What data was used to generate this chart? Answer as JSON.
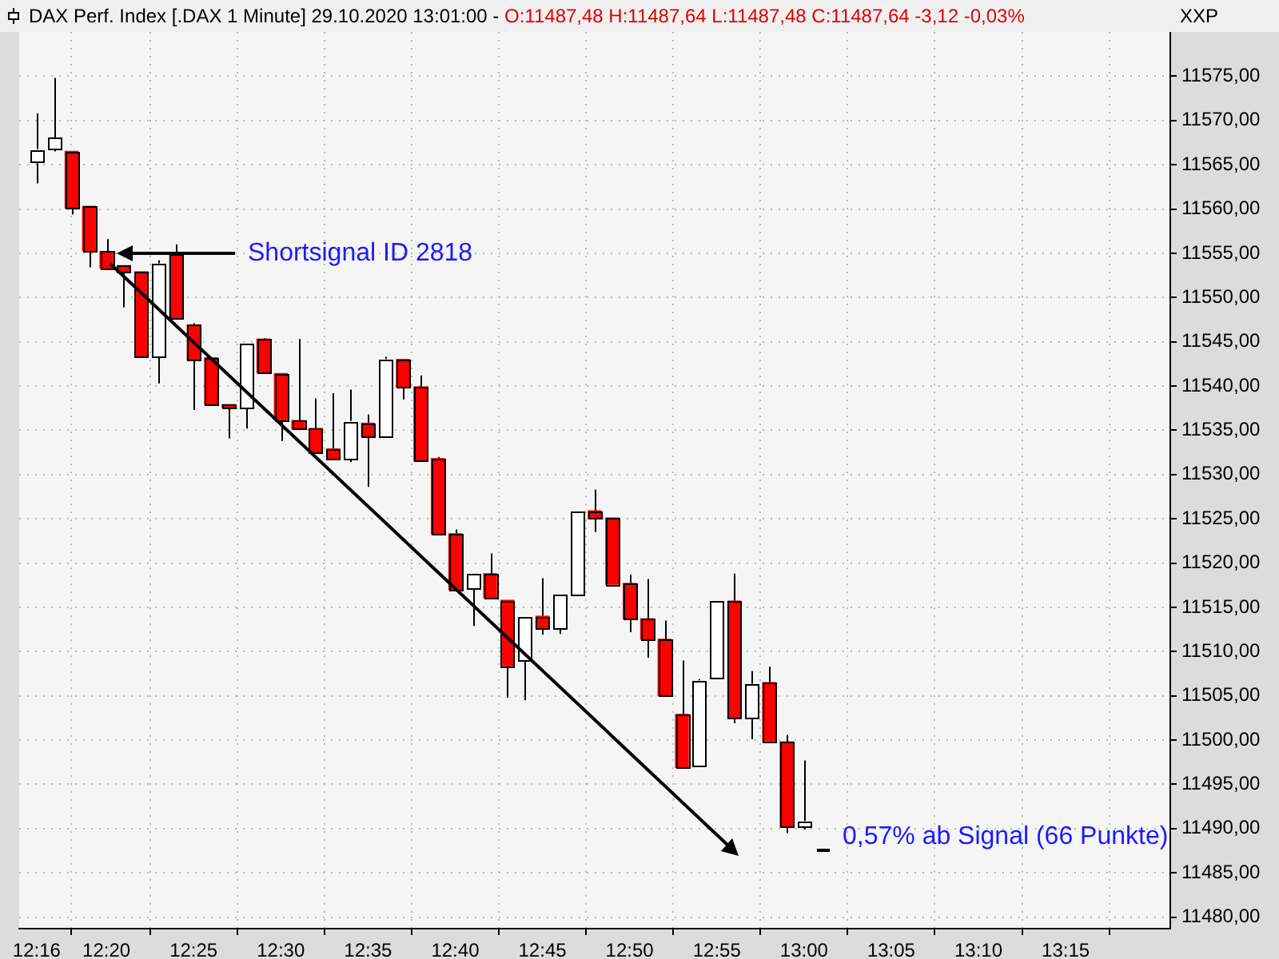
{
  "chart_data": {
    "type": "candlestick",
    "title": "DAX Perf. Index [.DAX  1 Minute] 29.10.2020 13:01:00 -",
    "subtitle": "O:11487,48 H:11487,64 L:11487,48 C:11487,64 -3,12 -0,03%",
    "ylabel": "XXP",
    "x": [
      "2020-10-29T12:16",
      "2020-10-29T12:17",
      "2020-10-29T12:18",
      "2020-10-29T12:19",
      "2020-10-29T12:20",
      "2020-10-29T12:21",
      "2020-10-29T12:22",
      "2020-10-29T12:23",
      "2020-10-29T12:24",
      "2020-10-29T12:25",
      "2020-10-29T12:26",
      "2020-10-29T12:27",
      "2020-10-29T12:28",
      "2020-10-29T12:29",
      "2020-10-29T12:30",
      "2020-10-29T12:31",
      "2020-10-29T12:32",
      "2020-10-29T12:33",
      "2020-10-29T12:34",
      "2020-10-29T12:35",
      "2020-10-29T12:36",
      "2020-10-29T12:37",
      "2020-10-29T12:38",
      "2020-10-29T12:39",
      "2020-10-29T12:40",
      "2020-10-29T12:41",
      "2020-10-29T12:42",
      "2020-10-29T12:43",
      "2020-10-29T12:44",
      "2020-10-29T12:45",
      "2020-10-29T12:46",
      "2020-10-29T12:47",
      "2020-10-29T12:48",
      "2020-10-29T12:49",
      "2020-10-29T12:50",
      "2020-10-29T12:51",
      "2020-10-29T12:52",
      "2020-10-29T12:53",
      "2020-10-29T12:54",
      "2020-10-29T12:55",
      "2020-10-29T12:56",
      "2020-10-29T12:57",
      "2020-10-29T12:58",
      "2020-10-29T12:59",
      "2020-10-29T13:00"
    ],
    "ohlc": [
      [
        11565.4,
        11570.8,
        11562.9,
        11566.7
      ],
      [
        11566.8,
        11574.8,
        11566.5,
        11568.0
      ],
      [
        11566.5,
        11566.5,
        11559.4,
        11560.1
      ],
      [
        11560.3,
        11560.3,
        11553.4,
        11555.3
      ],
      [
        11555.2,
        11556.6,
        11553.3,
        11553.3
      ],
      [
        11553.6,
        11553.6,
        11548.9,
        11552.9
      ],
      [
        11552.9,
        11552.9,
        11543.3,
        11543.3
      ],
      [
        11543.3,
        11554.2,
        11540.3,
        11553.8
      ],
      [
        11554.9,
        11556.0,
        11547.7,
        11547.7
      ],
      [
        11546.9,
        11547.1,
        11537.3,
        11543.0
      ],
      [
        11543.2,
        11543.2,
        11537.9,
        11537.9
      ],
      [
        11537.9,
        11537.9,
        11534.1,
        11537.6
      ],
      [
        11537.6,
        11544.7,
        11535.2,
        11544.7
      ],
      [
        11545.3,
        11545.4,
        11541.5,
        11541.5
      ],
      [
        11541.4,
        11541.4,
        11533.8,
        11536.2
      ],
      [
        11536.1,
        11545.3,
        11535.2,
        11535.2
      ],
      [
        11535.2,
        11538.6,
        11532.5,
        11532.5
      ],
      [
        11532.9,
        11539.2,
        11531.7,
        11531.7
      ],
      [
        11531.7,
        11539.6,
        11531.4,
        11536.0
      ],
      [
        11535.8,
        11536.8,
        11528.6,
        11534.3
      ],
      [
        11534.3,
        11543.3,
        11534.3,
        11543.0
      ],
      [
        11543.0,
        11543.0,
        11538.5,
        11539.9
      ],
      [
        11539.9,
        11541.2,
        11531.6,
        11531.6
      ],
      [
        11531.8,
        11532.0,
        11523.3,
        11523.3
      ],
      [
        11523.3,
        11523.8,
        11517.0,
        11517.0
      ],
      [
        11517.2,
        11518.8,
        11512.9,
        11518.8
      ],
      [
        11518.8,
        11521.1,
        11515.9,
        11516.1
      ],
      [
        11515.8,
        11515.8,
        11504.8,
        11508.4
      ],
      [
        11509.0,
        11514.0,
        11504.5,
        11514.0
      ],
      [
        11514.0,
        11518.3,
        11511.9,
        11512.7
      ],
      [
        11512.7,
        11516.4,
        11512.0,
        11516.4
      ],
      [
        11516.4,
        11525.9,
        11516.4,
        11525.9
      ],
      [
        11525.9,
        11528.3,
        11523.5,
        11525.1
      ],
      [
        11525.1,
        11525.1,
        11517.6,
        11517.6
      ],
      [
        11517.7,
        11518.7,
        11512.2,
        11513.7
      ],
      [
        11513.7,
        11518.2,
        11509.3,
        11511.4
      ],
      [
        11511.4,
        11513.5,
        11505.0,
        11505.0
      ],
      [
        11502.9,
        11509.0,
        11496.9,
        11496.9
      ],
      [
        11497.1,
        11506.9,
        11497.1,
        11506.7
      ],
      [
        11507.0,
        11515.7,
        11507.0,
        11515.7
      ],
      [
        11515.7,
        11518.8,
        11501.9,
        11502.5
      ],
      [
        11502.5,
        11507.8,
        11500.1,
        11506.3
      ],
      [
        11506.5,
        11508.3,
        11499.9,
        11499.9
      ],
      [
        11499.8,
        11500.6,
        11489.5,
        11490.2
      ],
      [
        11490.2,
        11497.7,
        11489.9,
        11490.8
      ]
    ],
    "colors": [
      "#ffffff",
      "#ffffff",
      "#ff0000",
      "#ff0000",
      "#ff0000",
      "#ff0000",
      "#ff0000",
      "#ffffff",
      "#ff0000",
      "#ff0000",
      "#ff0000",
      "#ff0000",
      "#ffffff",
      "#ff0000",
      "#ff0000",
      "#ff0000",
      "#ff0000",
      "#ff0000",
      "#ffffff",
      "#ff0000",
      "#ffffff",
      "#ff0000",
      "#ff0000",
      "#ff0000",
      "#ff0000",
      "#ffffff",
      "#ff0000",
      "#ff0000",
      "#ffffff",
      "#ff0000",
      "#ffffff",
      "#ffffff",
      "#ff0000",
      "#ff0000",
      "#ff0000",
      "#ff0000",
      "#ff0000",
      "#ff0000",
      "#ffffff",
      "#ffffff",
      "#ff0000",
      "#ffffff",
      "#ff0000",
      "#ff0000",
      "#ffffff"
    ],
    "xlim": [
      "2020-10-29T12:15",
      "2020-10-29T13:21"
    ],
    "xticks": [
      {
        "value": "2020-10-29T12:16",
        "label": "12:16"
      },
      {
        "value": "2020-10-29T12:20",
        "label": "12:20"
      },
      {
        "value": "2020-10-29T12:25",
        "label": "12:25"
      },
      {
        "value": "2020-10-29T12:30",
        "label": "12:30"
      },
      {
        "value": "2020-10-29T12:35",
        "label": "12:35"
      },
      {
        "value": "2020-10-29T12:40",
        "label": "12:40"
      },
      {
        "value": "2020-10-29T12:45",
        "label": "12:45"
      },
      {
        "value": "2020-10-29T12:50",
        "label": "12:50"
      },
      {
        "value": "2020-10-29T12:55",
        "label": "12:55"
      },
      {
        "value": "2020-10-29T13:00",
        "label": "13:00"
      },
      {
        "value": "2020-10-29T13:05",
        "label": "13:05"
      },
      {
        "value": "2020-10-29T13:10",
        "label": "13:10"
      },
      {
        "value": "2020-10-29T13:15",
        "label": "13:15"
      }
    ],
    "ylim": [
      11478.7,
      11580
    ],
    "yticks": [
      {
        "value": 11480,
        "label": "11480,00"
      },
      {
        "value": 11485,
        "label": "11485,00"
      },
      {
        "value": 11490,
        "label": "11490,00"
      },
      {
        "value": 11495,
        "label": "11495,00"
      },
      {
        "value": 11500,
        "label": "11500,00"
      },
      {
        "value": 11505,
        "label": "11505,00"
      },
      {
        "value": 11510,
        "label": "11510,00"
      },
      {
        "value": 11515,
        "label": "11515,00"
      },
      {
        "value": 11520,
        "label": "11520,00"
      },
      {
        "value": 11525,
        "label": "11525,00"
      },
      {
        "value": 11530,
        "label": "11530,00"
      },
      {
        "value": 11535,
        "label": "11535,00"
      },
      {
        "value": 11540,
        "label": "11540,00"
      },
      {
        "value": 11545,
        "label": "11545,00"
      },
      {
        "value": 11550,
        "label": "11550,00"
      },
      {
        "value": 11555,
        "label": "11555,00"
      },
      {
        "value": 11560,
        "label": "11560,00"
      },
      {
        "value": 11565,
        "label": "11565,00"
      },
      {
        "value": 11570,
        "label": "11570,00"
      },
      {
        "value": 11575,
        "label": "11575,00"
      }
    ],
    "grid": true,
    "legend": false,
    "annotations": [
      "Shortsignal ID 2818",
      "0,57% ab Signal (66 Punkte)"
    ]
  }
}
